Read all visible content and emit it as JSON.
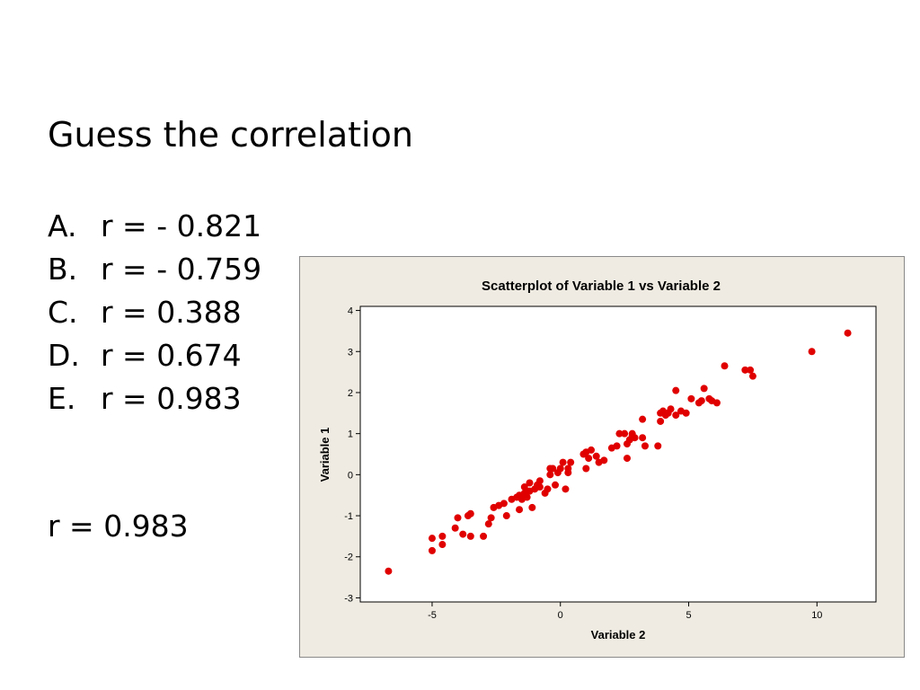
{
  "slide": {
    "title": "Guess the correlation",
    "options": [
      {
        "letter": "A.",
        "text": "r = - 0.821"
      },
      {
        "letter": "B.",
        "text": "r = - 0.759"
      },
      {
        "letter": "C.",
        "text": "r = 0.388"
      },
      {
        "letter": "D.",
        "text": "r = 0.674"
      },
      {
        "letter": "E.",
        "text": "r = 0.983"
      }
    ],
    "answer": "r = 0.983"
  },
  "colors": {
    "panel_background": "#efebe2",
    "plot_background": "#ffffff",
    "point_color": "#e00000"
  },
  "chart_data": {
    "type": "scatter",
    "title": "Scatterplot of Variable 1 vs Variable 2",
    "xlabel": "Variable 2",
    "ylabel": "Variable 1",
    "xlim": [
      -7.8,
      12.3
    ],
    "ylim": [
      -3.1,
      4.1
    ],
    "xticks": [
      -5,
      0,
      5,
      10
    ],
    "yticks": [
      -3,
      -2,
      -1,
      0,
      1,
      2,
      3,
      4
    ],
    "grid": false,
    "legend": "none",
    "series": [
      {
        "points": [
          [
            -6.7,
            -2.35
          ],
          [
            -5.0,
            -1.85
          ],
          [
            -5.0,
            -1.55
          ],
          [
            -4.6,
            -1.7
          ],
          [
            -4.6,
            -1.5
          ],
          [
            -4.1,
            -1.3
          ],
          [
            -4.0,
            -1.05
          ],
          [
            -3.8,
            -1.45
          ],
          [
            -3.6,
            -1.0
          ],
          [
            -3.5,
            -0.95
          ],
          [
            -3.5,
            -1.5
          ],
          [
            -3.0,
            -1.5
          ],
          [
            -2.8,
            -1.2
          ],
          [
            -2.7,
            -1.05
          ],
          [
            -2.6,
            -0.8
          ],
          [
            -2.4,
            -0.75
          ],
          [
            -2.2,
            -0.7
          ],
          [
            -2.1,
            -1.0
          ],
          [
            -1.9,
            -0.6
          ],
          [
            -1.7,
            -0.55
          ],
          [
            -1.6,
            -0.5
          ],
          [
            -1.6,
            -0.85
          ],
          [
            -1.5,
            -0.6
          ],
          [
            -1.4,
            -0.45
          ],
          [
            -1.4,
            -0.3
          ],
          [
            -1.3,
            -0.55
          ],
          [
            -1.2,
            -0.4
          ],
          [
            -1.2,
            -0.2
          ],
          [
            -1.1,
            -0.8
          ],
          [
            -1.0,
            -0.35
          ],
          [
            -0.9,
            -0.25
          ],
          [
            -0.8,
            -0.15
          ],
          [
            -0.8,
            -0.3
          ],
          [
            -0.6,
            -0.45
          ],
          [
            -0.5,
            -0.35
          ],
          [
            -0.4,
            0.0
          ],
          [
            -0.4,
            0.15
          ],
          [
            -0.3,
            0.15
          ],
          [
            -0.2,
            -0.25
          ],
          [
            -0.1,
            0.05
          ],
          [
            0.0,
            0.15
          ],
          [
            0.1,
            0.3
          ],
          [
            0.2,
            -0.35
          ],
          [
            0.3,
            0.15
          ],
          [
            0.3,
            0.05
          ],
          [
            0.4,
            0.3
          ],
          [
            0.9,
            0.5
          ],
          [
            1.0,
            0.55
          ],
          [
            1.0,
            0.15
          ],
          [
            1.1,
            0.4
          ],
          [
            1.2,
            0.6
          ],
          [
            1.4,
            0.45
          ],
          [
            1.5,
            0.3
          ],
          [
            1.7,
            0.35
          ],
          [
            2.0,
            0.65
          ],
          [
            2.2,
            0.7
          ],
          [
            2.3,
            1.0
          ],
          [
            2.5,
            1.0
          ],
          [
            2.6,
            0.4
          ],
          [
            2.6,
            0.75
          ],
          [
            2.7,
            0.85
          ],
          [
            2.8,
            1.0
          ],
          [
            2.8,
            0.95
          ],
          [
            2.9,
            0.9
          ],
          [
            3.2,
            0.9
          ],
          [
            3.2,
            1.35
          ],
          [
            3.3,
            0.7
          ],
          [
            3.8,
            0.7
          ],
          [
            3.9,
            1.3
          ],
          [
            3.9,
            1.5
          ],
          [
            4.0,
            1.55
          ],
          [
            4.1,
            1.45
          ],
          [
            4.2,
            1.5
          ],
          [
            4.3,
            1.6
          ],
          [
            4.5,
            2.05
          ],
          [
            4.5,
            1.45
          ],
          [
            4.7,
            1.55
          ],
          [
            4.9,
            1.5
          ],
          [
            5.1,
            1.85
          ],
          [
            5.4,
            1.75
          ],
          [
            5.5,
            1.8
          ],
          [
            5.6,
            2.1
          ],
          [
            5.8,
            1.85
          ],
          [
            5.9,
            1.8
          ],
          [
            6.1,
            1.75
          ],
          [
            6.4,
            2.65
          ],
          [
            7.2,
            2.55
          ],
          [
            7.4,
            2.55
          ],
          [
            7.5,
            2.4
          ],
          [
            9.8,
            3.0
          ],
          [
            11.2,
            3.45
          ]
        ]
      }
    ]
  }
}
